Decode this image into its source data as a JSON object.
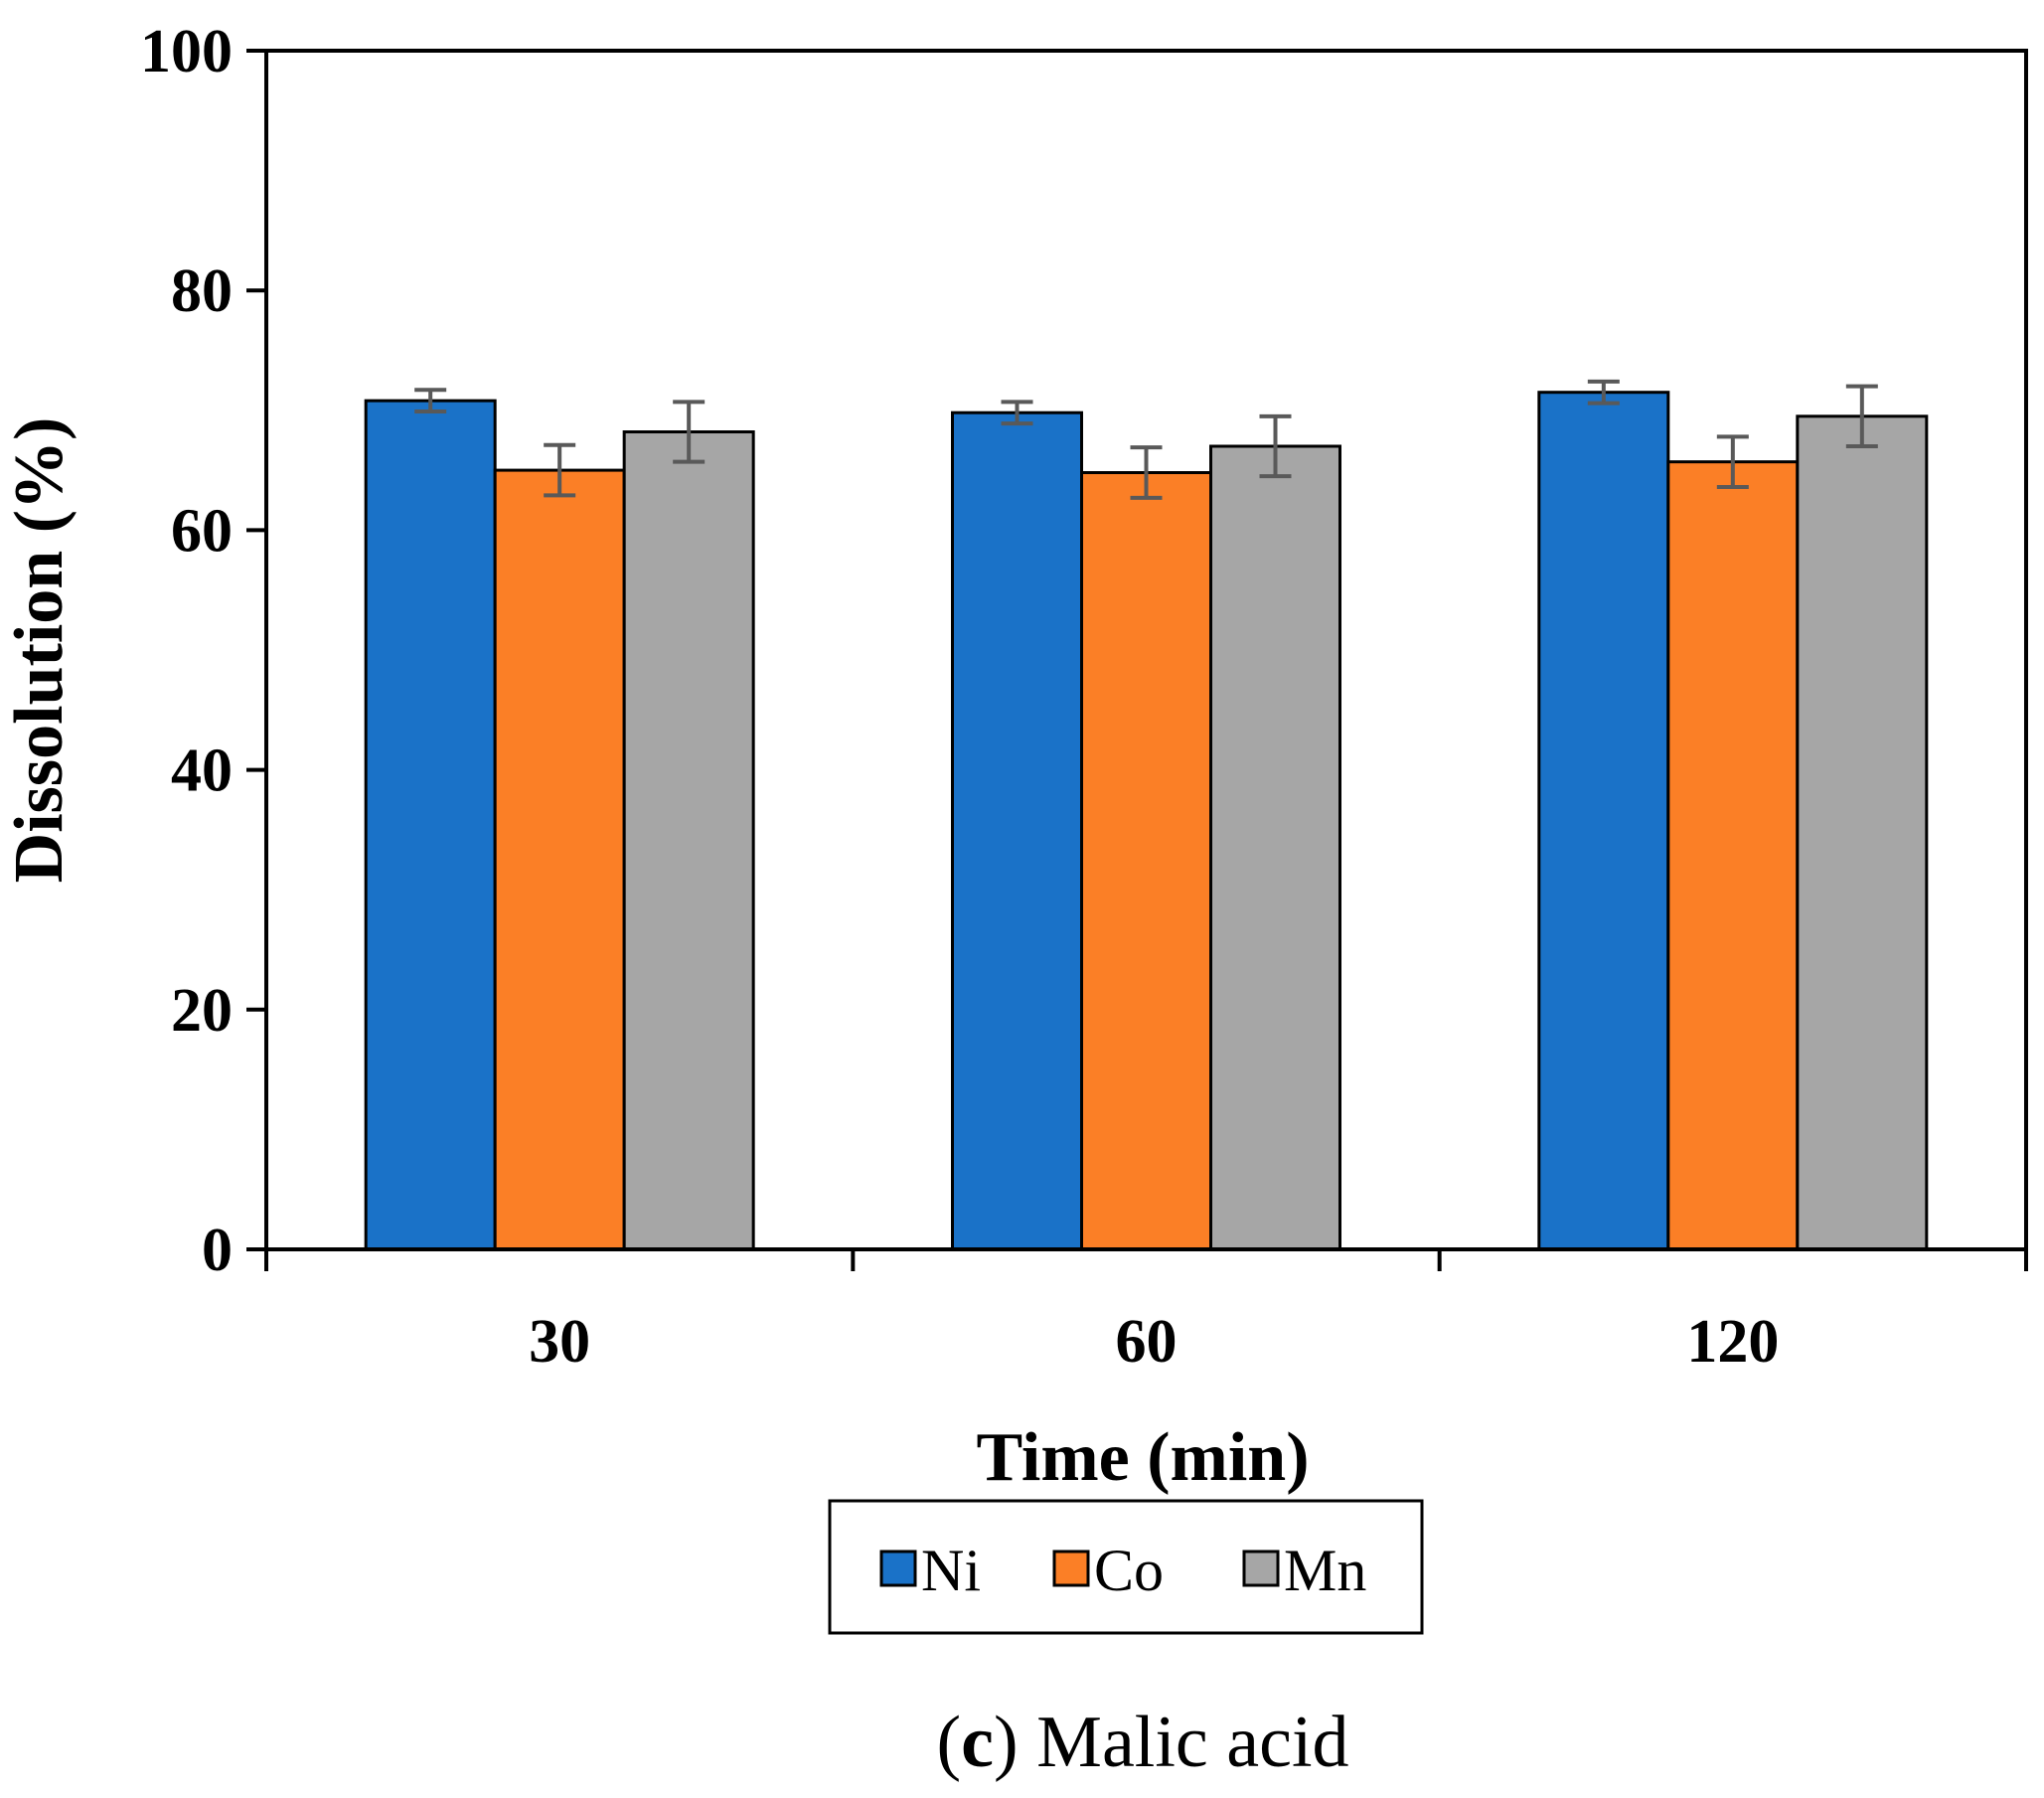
{
  "chart_data": {
    "type": "bar",
    "xlabel": "Time (min)",
    "ylabel": "Dissolution (%)",
    "ylim": [
      0,
      100
    ],
    "yticks": [
      "0",
      "20",
      "40",
      "60",
      "80",
      "100"
    ],
    "categories": [
      "30",
      "60",
      "120"
    ],
    "series": [
      {
        "name": "Ni",
        "color": "#1a72c8",
        "values": [
          70.8,
          69.8,
          71.5
        ],
        "errors": [
          0.9,
          0.9,
          0.9
        ]
      },
      {
        "name": "Co",
        "color": "#fb7f26",
        "values": [
          65.0,
          64.8,
          65.7
        ],
        "errors": [
          2.1,
          2.1,
          2.1
        ]
      },
      {
        "name": "Mn",
        "color": "#a6a6a6",
        "values": [
          68.2,
          67.0,
          69.5
        ],
        "errors": [
          2.5,
          2.5,
          2.5
        ]
      }
    ],
    "error_bar_color": "#595959",
    "grid": false,
    "legend_position": "bottom-center"
  },
  "caption": {
    "label": "c",
    "open": "(",
    "close": ")",
    "text": " Malic acid"
  }
}
